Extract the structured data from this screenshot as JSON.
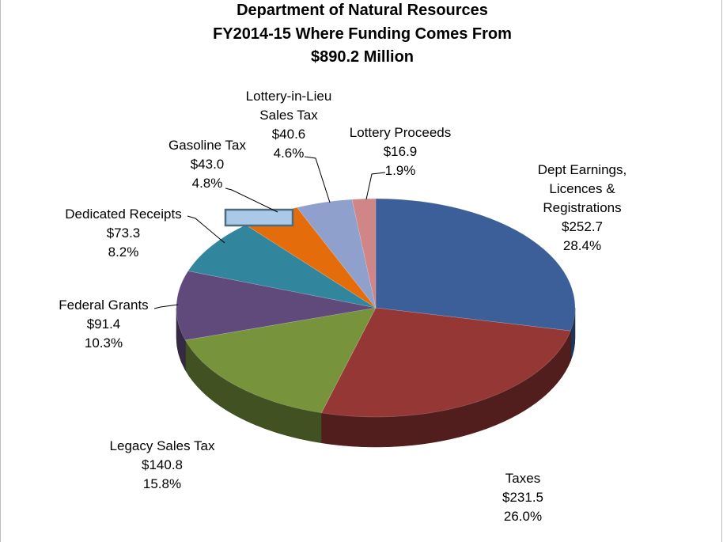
{
  "chart_data": {
    "type": "pie",
    "title": [
      "Department of Natural Resources",
      "FY2014-15 Where Funding Comes From",
      "$890.2 Million"
    ],
    "slices": [
      {
        "name": "Dept Earnings, Licences & Registrations",
        "name_lines": [
          "Dept Earnings,",
          "Licences &",
          "Registrations"
        ],
        "value_label": "$252.7",
        "percent_label": "28.4%",
        "value": 252.7,
        "percent": 28.4,
        "color": "#3d5f99"
      },
      {
        "name": "Taxes",
        "name_lines": [
          "Taxes"
        ],
        "value_label": "$231.5",
        "percent_label": "26.0%",
        "value": 231.5,
        "percent": 26.0,
        "color": "#953735"
      },
      {
        "name": "Legacy Sales Tax",
        "name_lines": [
          "Legacy Sales Tax"
        ],
        "value_label": "$140.8",
        "percent_label": "15.8%",
        "value": 140.8,
        "percent": 15.8,
        "color": "#77933c"
      },
      {
        "name": "Federal Grants",
        "name_lines": [
          "Federal Grants"
        ],
        "value_label": "$91.4",
        "percent_label": "10.3%",
        "value": 91.4,
        "percent": 10.3,
        "color": "#604a7b"
      },
      {
        "name": "Dedicated Receipts",
        "name_lines": [
          "Dedicated Receipts"
        ],
        "value_label": "$73.3",
        "percent_label": "8.2%",
        "value": 73.3,
        "percent": 8.2,
        "color": "#31859c"
      },
      {
        "name": "Gasoline Tax",
        "name_lines": [
          "Gasoline Tax"
        ],
        "value_label": "$43.0",
        "percent_label": "4.8%",
        "value": 43.0,
        "percent": 4.8,
        "color": "#e46c0a"
      },
      {
        "name": "Lottery-in-Lieu Sales Tax",
        "name_lines": [
          "Lottery-in-Lieu",
          "Sales Tax"
        ],
        "value_label": "$40.6",
        "percent_label": "4.6%",
        "value": 40.6,
        "percent": 4.6,
        "color": "#8ea0cb"
      },
      {
        "name": "Lottery Proceeds",
        "name_lines": [
          "Lottery Proceeds"
        ],
        "value_label": "$16.9",
        "percent_label": "1.9%",
        "value": 16.9,
        "percent": 1.9,
        "color": "#d08686"
      }
    ],
    "legend": "none",
    "style": "3d-exploded"
  }
}
